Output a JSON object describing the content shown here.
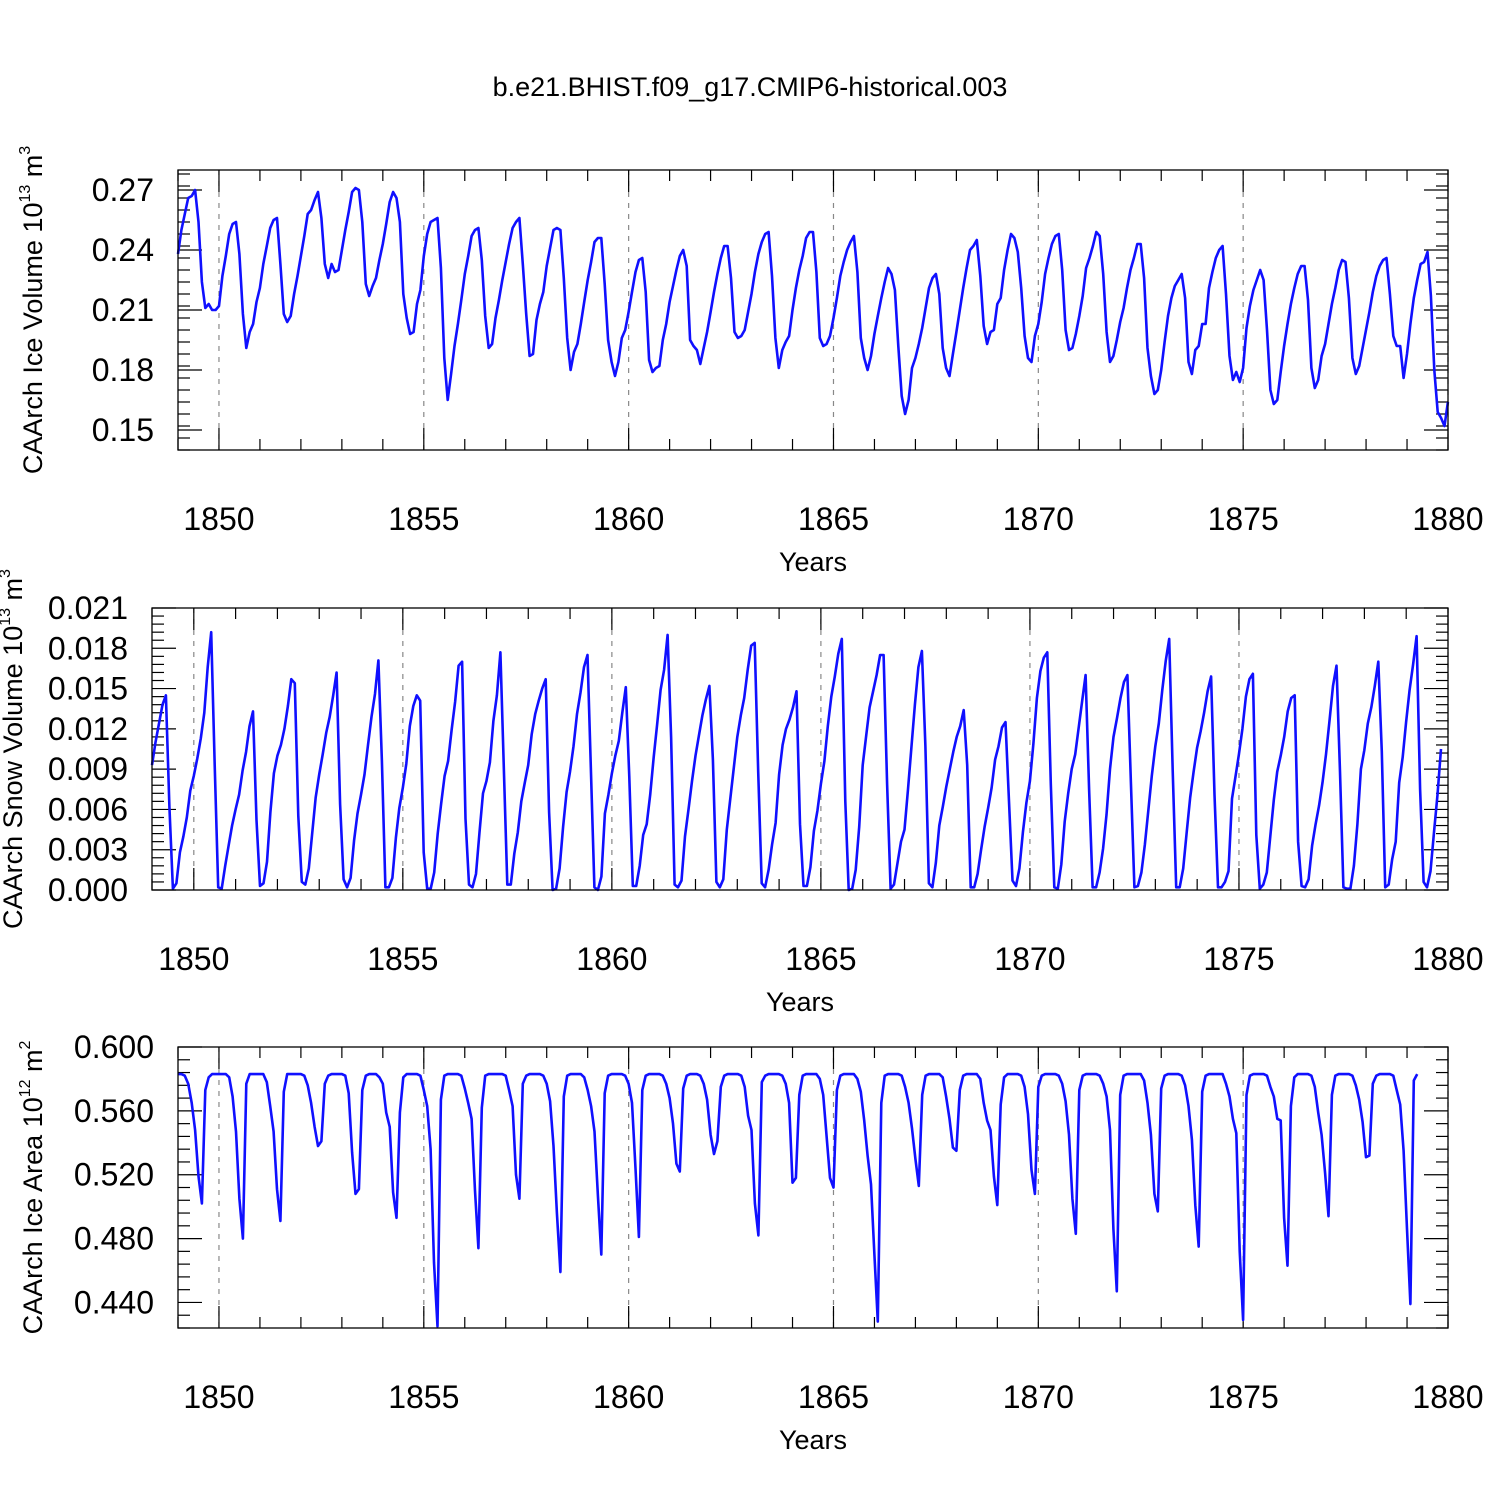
{
  "title": "b.e21.BHIST.f09_g17.CMIP6-historical.003",
  "colors": {
    "line": "#1010ff",
    "frame": "#000000",
    "grid": "#888888"
  },
  "chart_data": [
    {
      "type": "line",
      "name": "ice-volume",
      "ylabel_main": "CAArch Ice Volume 10",
      "ylabel_exp": "13",
      "ylabel_unit": " m",
      "ylabel_unit_exp": "3",
      "xlabel": "Years",
      "xlim": [
        1849,
        1880
      ],
      "ylim": [
        0.14,
        0.28
      ],
      "yticks": [
        0.15,
        0.18,
        0.21,
        0.24,
        0.27
      ],
      "ytick_labels": [
        "0.15",
        "0.18",
        "0.21",
        "0.24",
        "0.27"
      ],
      "xticks": [
        1850,
        1855,
        1860,
        1865,
        1870,
        1875,
        1880
      ],
      "xtick_labels": [
        "1850",
        "1855",
        "1860",
        "1865",
        "1870",
        "1875",
        "1880"
      ],
      "x_start": 1849.0,
      "x_step": 0.08333,
      "values": [
        0.238,
        0.25,
        0.258,
        0.266,
        0.267,
        0.27,
        0.254,
        0.224,
        0.211,
        0.213,
        0.21,
        0.21,
        0.212,
        0.227,
        0.237,
        0.248,
        0.253,
        0.254,
        0.238,
        0.208,
        0.191,
        0.199,
        0.203,
        0.214,
        0.221,
        0.233,
        0.242,
        0.251,
        0.255,
        0.256,
        0.233,
        0.208,
        0.204,
        0.207,
        0.218,
        0.227,
        0.237,
        0.247,
        0.258,
        0.26,
        0.265,
        0.269,
        0.256,
        0.233,
        0.226,
        0.233,
        0.229,
        0.23,
        0.24,
        0.25,
        0.259,
        0.269,
        0.271,
        0.27,
        0.254,
        0.223,
        0.217,
        0.222,
        0.226,
        0.235,
        0.243,
        0.253,
        0.264,
        0.269,
        0.266,
        0.254,
        0.218,
        0.206,
        0.198,
        0.199,
        0.213,
        0.22,
        0.237,
        0.248,
        0.254,
        0.255,
        0.256,
        0.231,
        0.186,
        0.165,
        0.178,
        0.192,
        0.203,
        0.215,
        0.228,
        0.237,
        0.247,
        0.25,
        0.251,
        0.235,
        0.207,
        0.191,
        0.193,
        0.206,
        0.215,
        0.225,
        0.234,
        0.243,
        0.251,
        0.254,
        0.256,
        0.233,
        0.208,
        0.187,
        0.188,
        0.205,
        0.213,
        0.219,
        0.232,
        0.241,
        0.25,
        0.251,
        0.25,
        0.226,
        0.196,
        0.18,
        0.189,
        0.193,
        0.203,
        0.214,
        0.225,
        0.234,
        0.244,
        0.246,
        0.246,
        0.223,
        0.195,
        0.184,
        0.177,
        0.184,
        0.196,
        0.2,
        0.209,
        0.219,
        0.229,
        0.235,
        0.236,
        0.219,
        0.185,
        0.179,
        0.181,
        0.182,
        0.195,
        0.203,
        0.214,
        0.222,
        0.23,
        0.237,
        0.24,
        0.232,
        0.195,
        0.192,
        0.19,
        0.183,
        0.191,
        0.199,
        0.209,
        0.219,
        0.228,
        0.236,
        0.242,
        0.242,
        0.226,
        0.199,
        0.196,
        0.197,
        0.2,
        0.209,
        0.218,
        0.229,
        0.238,
        0.244,
        0.248,
        0.249,
        0.227,
        0.196,
        0.181,
        0.19,
        0.194,
        0.197,
        0.21,
        0.221,
        0.23,
        0.237,
        0.246,
        0.249,
        0.249,
        0.229,
        0.196,
        0.192,
        0.193,
        0.197,
        0.206,
        0.216,
        0.227,
        0.234,
        0.24,
        0.244,
        0.247,
        0.229,
        0.196,
        0.186,
        0.18,
        0.187,
        0.198,
        0.207,
        0.216,
        0.224,
        0.231,
        0.228,
        0.22,
        0.192,
        0.167,
        0.158,
        0.165,
        0.181,
        0.186,
        0.193,
        0.201,
        0.211,
        0.221,
        0.226,
        0.228,
        0.218,
        0.191,
        0.181,
        0.177,
        0.188,
        0.199,
        0.21,
        0.221,
        0.231,
        0.24,
        0.242,
        0.245,
        0.227,
        0.202,
        0.193,
        0.199,
        0.2,
        0.213,
        0.216,
        0.23,
        0.24,
        0.248,
        0.246,
        0.239,
        0.221,
        0.197,
        0.186,
        0.184,
        0.197,
        0.203,
        0.214,
        0.228,
        0.236,
        0.243,
        0.247,
        0.248,
        0.23,
        0.2,
        0.19,
        0.191,
        0.198,
        0.207,
        0.217,
        0.231,
        0.236,
        0.242,
        0.249,
        0.247,
        0.228,
        0.199,
        0.184,
        0.187,
        0.195,
        0.204,
        0.211,
        0.221,
        0.23,
        0.236,
        0.243,
        0.243,
        0.226,
        0.191,
        0.177,
        0.168,
        0.17,
        0.18,
        0.194,
        0.207,
        0.216,
        0.222,
        0.225,
        0.228,
        0.216,
        0.184,
        0.178,
        0.19,
        0.192,
        0.203,
        0.203,
        0.221,
        0.229,
        0.236,
        0.24,
        0.242,
        0.218,
        0.187,
        0.175,
        0.179,
        0.174,
        0.181,
        0.201,
        0.212,
        0.22,
        0.225,
        0.23,
        0.225,
        0.2,
        0.17,
        0.163,
        0.165,
        0.179,
        0.192,
        0.203,
        0.213,
        0.221,
        0.228,
        0.232,
        0.232,
        0.215,
        0.181,
        0.171,
        0.175,
        0.187,
        0.193,
        0.203,
        0.213,
        0.221,
        0.23,
        0.235,
        0.234,
        0.216,
        0.186,
        0.178,
        0.182,
        0.191,
        0.2,
        0.209,
        0.219,
        0.227,
        0.232,
        0.235,
        0.236,
        0.218,
        0.197,
        0.192,
        0.192,
        0.176,
        0.188,
        0.203,
        0.216,
        0.225,
        0.233,
        0.234,
        0.239,
        0.217,
        0.18,
        0.159,
        0.156,
        0.152,
        0.164
      ]
    },
    {
      "type": "line",
      "name": "snow-volume",
      "ylabel_main": "CAArch Snow Volume 10",
      "ylabel_exp": "13",
      "ylabel_unit": " m",
      "ylabel_unit_exp": "3",
      "xlabel": "Years",
      "xlim": [
        1849,
        1880
      ],
      "ylim": [
        0.0,
        0.021
      ],
      "yticks": [
        0.0,
        0.003,
        0.006,
        0.009,
        0.012,
        0.015,
        0.018,
        0.021
      ],
      "ytick_labels": [
        "0.000",
        "0.003",
        "0.006",
        "0.009",
        "0.012",
        "0.015",
        "0.018",
        "0.021"
      ],
      "xticks": [
        1850,
        1855,
        1860,
        1865,
        1870,
        1875,
        1880
      ],
      "xtick_labels": [
        "1850",
        "1855",
        "1860",
        "1865",
        "1870",
        "1875",
        "1880"
      ],
      "x_start": 1849.0,
      "x_step": 0.08333,
      "values": [
        0.0093,
        0.011,
        0.0124,
        0.0138,
        0.0145,
        0.0062,
        0.0001,
        0.0005,
        0.0028,
        0.004,
        0.0054,
        0.0074,
        0.0085,
        0.0098,
        0.0113,
        0.0132,
        0.0166,
        0.0192,
        0.0093,
        0.0002,
        0.0001,
        0.0018,
        0.0033,
        0.0048,
        0.006,
        0.0071,
        0.0089,
        0.0103,
        0.0122,
        0.0133,
        0.0052,
        0.0003,
        0.0005,
        0.0021,
        0.0058,
        0.0087,
        0.01,
        0.0108,
        0.012,
        0.0137,
        0.0157,
        0.0154,
        0.0055,
        0.0006,
        0.0004,
        0.0016,
        0.0043,
        0.0069,
        0.0086,
        0.0101,
        0.0117,
        0.0129,
        0.0145,
        0.0162,
        0.0064,
        0.0008,
        0.0002,
        0.0009,
        0.0037,
        0.0057,
        0.0071,
        0.0086,
        0.0108,
        0.0129,
        0.0146,
        0.0171,
        0.0096,
        0.0002,
        0.0002,
        0.0009,
        0.0039,
        0.0061,
        0.0076,
        0.0094,
        0.0122,
        0.0137,
        0.0145,
        0.0141,
        0.0028,
        0.0001,
        0.0001,
        0.0013,
        0.0042,
        0.0064,
        0.0085,
        0.0096,
        0.0119,
        0.014,
        0.0167,
        0.017,
        0.0053,
        0.0004,
        0.0002,
        0.0012,
        0.0043,
        0.0072,
        0.0081,
        0.0095,
        0.0126,
        0.0145,
        0.0177,
        0.0089,
        0.0004,
        0.0004,
        0.0027,
        0.0043,
        0.0066,
        0.008,
        0.0093,
        0.0116,
        0.0131,
        0.0141,
        0.015,
        0.0157,
        0.0058,
        0.0,
        0.0001,
        0.0016,
        0.0047,
        0.0073,
        0.0088,
        0.0107,
        0.0131,
        0.0147,
        0.0166,
        0.0175,
        0.0087,
        0.0002,
        0.0,
        0.001,
        0.0057,
        0.0071,
        0.0087,
        0.01,
        0.0111,
        0.0132,
        0.0151,
        0.0084,
        0.0003,
        0.0003,
        0.0018,
        0.0041,
        0.0049,
        0.0071,
        0.0099,
        0.0123,
        0.0149,
        0.0164,
        0.019,
        0.0114,
        0.0004,
        0.0002,
        0.0007,
        0.004,
        0.006,
        0.0081,
        0.01,
        0.0115,
        0.013,
        0.0142,
        0.0152,
        0.0097,
        0.0006,
        0.0002,
        0.0008,
        0.0045,
        0.0068,
        0.0091,
        0.0114,
        0.013,
        0.0143,
        0.0164,
        0.0182,
        0.0184,
        0.0088,
        0.0005,
        0.0002,
        0.0015,
        0.0034,
        0.005,
        0.0086,
        0.0108,
        0.012,
        0.0127,
        0.0136,
        0.0148,
        0.0049,
        0.0003,
        0.0003,
        0.0017,
        0.0044,
        0.0059,
        0.0079,
        0.0096,
        0.0122,
        0.0144,
        0.0159,
        0.0176,
        0.0187,
        0.0066,
        0.0,
        0.0001,
        0.0015,
        0.0047,
        0.0093,
        0.0115,
        0.0136,
        0.0148,
        0.016,
        0.0175,
        0.0175,
        0.0079,
        0.0001,
        0.0004,
        0.002,
        0.0036,
        0.0045,
        0.0075,
        0.0107,
        0.0138,
        0.0166,
        0.0178,
        0.0107,
        0.0005,
        0.0002,
        0.002,
        0.0048,
        0.0062,
        0.0077,
        0.009,
        0.0103,
        0.0114,
        0.0122,
        0.0134,
        0.0093,
        0.0002,
        0.0002,
        0.0012,
        0.003,
        0.0047,
        0.0061,
        0.0076,
        0.0097,
        0.0107,
        0.0121,
        0.0125,
        0.0066,
        0.0007,
        0.0003,
        0.0016,
        0.0043,
        0.0065,
        0.0081,
        0.0109,
        0.0143,
        0.0163,
        0.0173,
        0.0177,
        0.0079,
        0.0002,
        0.0001,
        0.0019,
        0.0051,
        0.0072,
        0.009,
        0.0101,
        0.0121,
        0.0141,
        0.016,
        0.0075,
        0.0002,
        0.0002,
        0.0013,
        0.0031,
        0.0056,
        0.009,
        0.0114,
        0.0128,
        0.0143,
        0.0155,
        0.016,
        0.008,
        0.0002,
        0.0003,
        0.0013,
        0.0034,
        0.0059,
        0.0085,
        0.0107,
        0.0124,
        0.0149,
        0.0171,
        0.0187,
        0.0089,
        0.0002,
        0.0002,
        0.0016,
        0.0043,
        0.0069,
        0.0088,
        0.0106,
        0.0118,
        0.0132,
        0.0148,
        0.0159,
        0.0071,
        0.0002,
        0.0002,
        0.0006,
        0.0014,
        0.0068,
        0.0084,
        0.0101,
        0.012,
        0.0144,
        0.0157,
        0.0161,
        0.0041,
        0.0001,
        0.0004,
        0.0013,
        0.004,
        0.0067,
        0.0088,
        0.01,
        0.0114,
        0.0133,
        0.0143,
        0.0145,
        0.0036,
        0.0003,
        0.0002,
        0.0008,
        0.0033,
        0.0049,
        0.0063,
        0.008,
        0.0101,
        0.0126,
        0.0152,
        0.0167,
        0.0088,
        0.0002,
        0.0001,
        0.0001,
        0.0018,
        0.0049,
        0.009,
        0.0104,
        0.0124,
        0.0136,
        0.0152,
        0.017,
        0.0103,
        0.0002,
        0.0004,
        0.0023,
        0.0036,
        0.008,
        0.0099,
        0.0125,
        0.0149,
        0.0168,
        0.0189,
        0.0075,
        0.0006,
        0.0002,
        0.0014,
        0.0043,
        0.0071,
        0.0105
      ]
    },
    {
      "type": "line",
      "name": "ice-area",
      "ylabel_main": "CAArch Ice Area 10",
      "ylabel_exp": "12",
      "ylabel_unit": " m",
      "ylabel_unit_exp": "2",
      "xlabel": "Years",
      "xlim": [
        1849,
        1880
      ],
      "ylim": [
        0.424,
        0.6
      ],
      "yticks": [
        0.44,
        0.48,
        0.52,
        0.56,
        0.6
      ],
      "ytick_labels": [
        "0.440",
        "0.480",
        "0.520",
        "0.560",
        "0.600"
      ],
      "xticks": [
        1850,
        1855,
        1860,
        1865,
        1870,
        1875,
        1880
      ],
      "xtick_labels": [
        "1850",
        "1855",
        "1860",
        "1865",
        "1870",
        "1875",
        "1880"
      ],
      "x_start": 1849.0,
      "x_step": 0.08333,
      "values": [
        0.583,
        0.583,
        0.582,
        0.577,
        0.565,
        0.548,
        0.519,
        0.502,
        0.573,
        0.581,
        0.583,
        0.583,
        0.583,
        0.583,
        0.583,
        0.581,
        0.569,
        0.547,
        0.505,
        0.48,
        0.577,
        0.583,
        0.583,
        0.583,
        0.583,
        0.583,
        0.578,
        0.563,
        0.547,
        0.511,
        0.491,
        0.572,
        0.583,
        0.583,
        0.583,
        0.583,
        0.583,
        0.582,
        0.576,
        0.565,
        0.55,
        0.538,
        0.541,
        0.577,
        0.582,
        0.583,
        0.583,
        0.583,
        0.583,
        0.582,
        0.571,
        0.534,
        0.508,
        0.511,
        0.573,
        0.582,
        0.583,
        0.583,
        0.583,
        0.581,
        0.577,
        0.559,
        0.55,
        0.509,
        0.493,
        0.559,
        0.581,
        0.583,
        0.583,
        0.583,
        0.583,
        0.582,
        0.573,
        0.563,
        0.536,
        0.465,
        0.425,
        0.567,
        0.582,
        0.583,
        0.583,
        0.583,
        0.583,
        0.582,
        0.574,
        0.565,
        0.555,
        0.51,
        0.474,
        0.562,
        0.582,
        0.583,
        0.583,
        0.583,
        0.583,
        0.583,
        0.582,
        0.573,
        0.563,
        0.52,
        0.505,
        0.577,
        0.582,
        0.583,
        0.583,
        0.583,
        0.583,
        0.582,
        0.577,
        0.566,
        0.538,
        0.496,
        0.459,
        0.569,
        0.582,
        0.583,
        0.583,
        0.583,
        0.583,
        0.581,
        0.573,
        0.563,
        0.547,
        0.507,
        0.47,
        0.571,
        0.582,
        0.583,
        0.583,
        0.583,
        0.583,
        0.582,
        0.577,
        0.565,
        0.524,
        0.481,
        0.573,
        0.582,
        0.583,
        0.583,
        0.583,
        0.583,
        0.582,
        0.577,
        0.568,
        0.552,
        0.527,
        0.522,
        0.574,
        0.582,
        0.583,
        0.583,
        0.583,
        0.582,
        0.577,
        0.567,
        0.545,
        0.533,
        0.541,
        0.575,
        0.582,
        0.583,
        0.583,
        0.583,
        0.583,
        0.582,
        0.575,
        0.557,
        0.548,
        0.502,
        0.482,
        0.578,
        0.582,
        0.583,
        0.583,
        0.583,
        0.583,
        0.582,
        0.577,
        0.565,
        0.515,
        0.518,
        0.57,
        0.582,
        0.583,
        0.583,
        0.583,
        0.583,
        0.58,
        0.57,
        0.544,
        0.518,
        0.512,
        0.573,
        0.582,
        0.583,
        0.583,
        0.583,
        0.583,
        0.58,
        0.572,
        0.554,
        0.532,
        0.514,
        0.47,
        0.428,
        0.565,
        0.582,
        0.583,
        0.583,
        0.583,
        0.583,
        0.582,
        0.575,
        0.565,
        0.549,
        0.53,
        0.513,
        0.57,
        0.582,
        0.583,
        0.583,
        0.583,
        0.583,
        0.581,
        0.569,
        0.555,
        0.537,
        0.535,
        0.573,
        0.582,
        0.583,
        0.583,
        0.583,
        0.583,
        0.58,
        0.565,
        0.554,
        0.548,
        0.519,
        0.501,
        0.564,
        0.581,
        0.583,
        0.583,
        0.583,
        0.583,
        0.582,
        0.575,
        0.558,
        0.523,
        0.508,
        0.575,
        0.582,
        0.583,
        0.583,
        0.583,
        0.583,
        0.582,
        0.577,
        0.566,
        0.545,
        0.505,
        0.483,
        0.573,
        0.582,
        0.583,
        0.583,
        0.583,
        0.583,
        0.582,
        0.577,
        0.569,
        0.548,
        0.486,
        0.447,
        0.57,
        0.582,
        0.583,
        0.583,
        0.583,
        0.583,
        0.583,
        0.579,
        0.565,
        0.545,
        0.508,
        0.497,
        0.574,
        0.582,
        0.583,
        0.583,
        0.583,
        0.583,
        0.582,
        0.576,
        0.563,
        0.542,
        0.501,
        0.475,
        0.572,
        0.582,
        0.583,
        0.583,
        0.583,
        0.583,
        0.583,
        0.577,
        0.569,
        0.555,
        0.546,
        0.472,
        0.429,
        0.57,
        0.582,
        0.583,
        0.583,
        0.583,
        0.583,
        0.582,
        0.575,
        0.569,
        0.555,
        0.554,
        0.493,
        0.463,
        0.563,
        0.581,
        0.583,
        0.583,
        0.583,
        0.583,
        0.582,
        0.575,
        0.559,
        0.545,
        0.521,
        0.494,
        0.57,
        0.582,
        0.583,
        0.583,
        0.583,
        0.583,
        0.582,
        0.576,
        0.567,
        0.553,
        0.531,
        0.532,
        0.577,
        0.582,
        0.583,
        0.583,
        0.583,
        0.583,
        0.582,
        0.573,
        0.564,
        0.535,
        0.486,
        0.439,
        0.579,
        0.583
      ]
    }
  ]
}
